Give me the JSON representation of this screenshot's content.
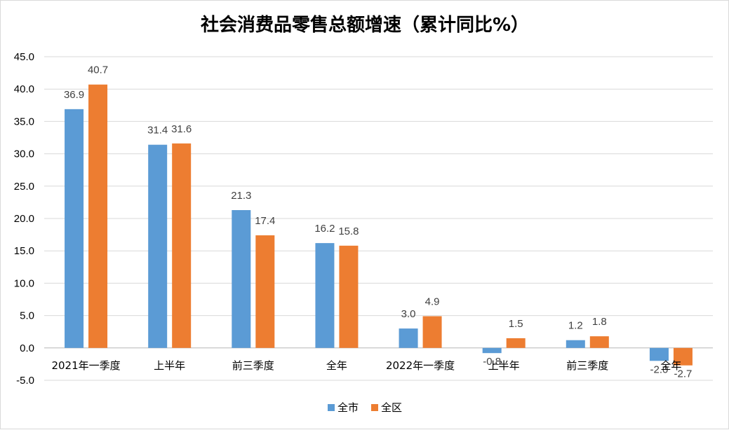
{
  "chart_data": {
    "type": "bar",
    "title": "社会消费品零售总额增速（累计同比%）",
    "categories": [
      "2021年一季度",
      "上半年",
      "前三季度",
      "全年",
      "2022年一季度",
      "上半年",
      "前三季度",
      "全年"
    ],
    "series": [
      {
        "name": "全市",
        "color": "#5b9bd5",
        "values": [
          36.9,
          31.4,
          21.3,
          16.2,
          3.0,
          -0.8,
          1.2,
          -2.0
        ]
      },
      {
        "name": "全区",
        "color": "#ed7d31",
        "values": [
          40.7,
          31.6,
          17.4,
          15.8,
          4.9,
          1.5,
          1.8,
          -2.7
        ]
      }
    ],
    "ylim": [
      -5,
      45
    ],
    "yticks": [
      -5,
      0,
      5,
      10,
      15,
      20,
      25,
      30,
      35,
      40,
      45
    ],
    "grid": true,
    "legend": "bottom",
    "xlabel": "",
    "ylabel": ""
  }
}
